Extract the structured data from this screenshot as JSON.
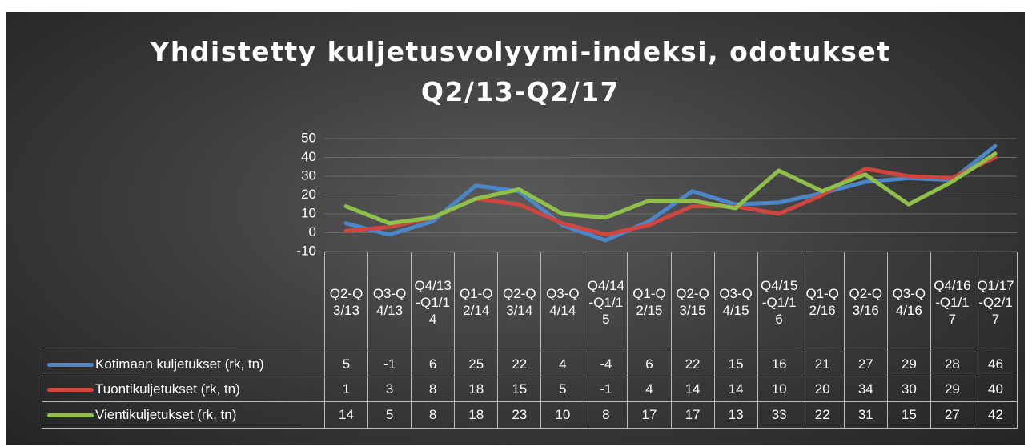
{
  "chart_data": {
    "type": "line",
    "title": "Yhdistetty kuljetusvolyymi-indeksi, odotukset Q2/13-Q2/17",
    "categories": [
      "Q2-Q3/13",
      "Q3-Q4/13",
      "Q4/13-Q1/14",
      "Q1-Q2/14",
      "Q2-Q3/14",
      "Q3-Q4/14",
      "Q4/14-Q1/15",
      "Q1-Q2/15",
      "Q2-Q3/15",
      "Q3-Q4/15",
      "Q4/15-Q1/16",
      "Q1-Q2/16",
      "Q2-Q3/16",
      "Q3-Q4/16",
      "Q4/16-Q1/17",
      "Q1/17-Q2/17"
    ],
    "series": [
      {
        "name": "Kotimaan kuljetukset (rk, tn)",
        "color": "#4a86c8",
        "values": [
          5,
          -1,
          6,
          25,
          22,
          4,
          -4,
          6,
          22,
          15,
          16,
          21,
          27,
          29,
          28,
          46
        ]
      },
      {
        "name": "Tuontikuljetukset (rk, tn)",
        "color": "#d0463f",
        "values": [
          1,
          3,
          8,
          18,
          15,
          5,
          -1,
          4,
          14,
          14,
          10,
          20,
          34,
          30,
          29,
          40
        ]
      },
      {
        "name": "Vientikuljetukset (rk, tn)",
        "color": "#8fc04a",
        "values": [
          14,
          5,
          8,
          18,
          23,
          10,
          8,
          17,
          17,
          13,
          33,
          22,
          31,
          15,
          27,
          42
        ]
      }
    ],
    "ylim": [
      -10,
      50
    ],
    "yticks": [
      -10,
      0,
      10,
      20,
      30,
      40,
      50
    ],
    "grid": true
  }
}
